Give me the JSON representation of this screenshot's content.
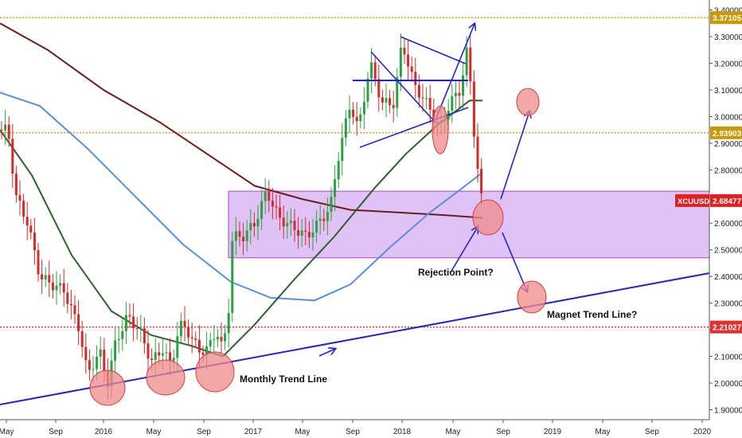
{
  "chart_data": {
    "type": "candlestick",
    "title": "",
    "symbol": "XCUUSD",
    "current_price": "2.68477",
    "y_axis": {
      "ylim": [
        1.86,
        3.41
      ],
      "ticks": [
        "1.90000",
        "2.00000",
        "2.10000",
        "2.20000",
        "2.30000",
        "2.40000",
        "2.50000",
        "2.60000",
        "2.70000",
        "2.80000",
        "2.90000",
        "3.00000",
        "3.10000",
        "3.20000",
        "3.30000",
        "3.40000"
      ]
    },
    "x_axis": {
      "labels": [
        "May",
        "Sep",
        "2016",
        "May",
        "Sep",
        "2017",
        "May",
        "Sep",
        "2018",
        "May",
        "Sep",
        "2019",
        "May",
        "Sep",
        "2020"
      ]
    },
    "price_levels": [
      {
        "label": "3.37105",
        "value": 3.37105,
        "color": "#c99a00",
        "style": "dotted"
      },
      {
        "label": "2.93903",
        "value": 2.93903,
        "color": "#c99a00",
        "style": "dotted"
      },
      {
        "label": "2.21027",
        "value": 2.21027,
        "color": "#e03030",
        "style": "dotted"
      }
    ],
    "price_badge_color": "#e02020",
    "zone": {
      "from": 2.47,
      "to": 2.72,
      "color": "#d9b8f5",
      "border": "#b040d0"
    },
    "series": [
      {
        "name": "",
        "type": "ma",
        "color": "#6b1d1d"
      },
      {
        "name": "",
        "type": "ma",
        "color": "#5b8fd6"
      },
      {
        "name": "",
        "type": "ma",
        "color": "#2f5f2f"
      }
    ],
    "annotations": [
      {
        "text": "Rejection Point?"
      },
      {
        "text": "Magnet Trend Line?"
      },
      {
        "text": "Monthly Trend Line"
      }
    ],
    "colors": {
      "up": "#2ea043",
      "down": "#d12b2b",
      "trend": "#2424c8",
      "circle_fill": "#f08a8a"
    }
  }
}
